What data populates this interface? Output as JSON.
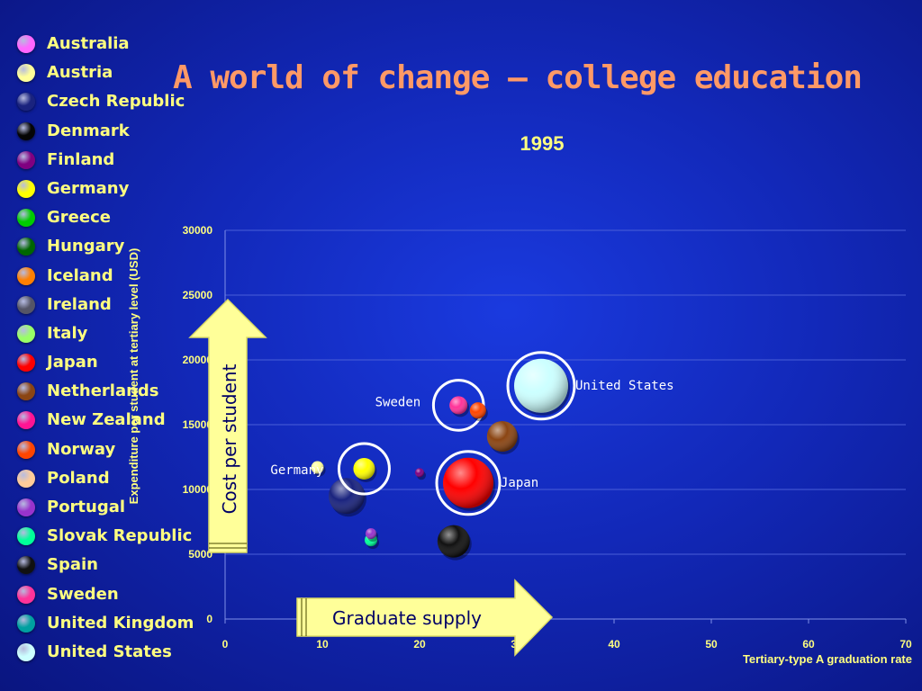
{
  "slide": {
    "title": "A world of change – college education",
    "cost_arrow_label": "Cost per student",
    "supply_arrow_label": "Graduate supply"
  },
  "legend": [
    {
      "label": "Australia",
      "color": "#ff66ff"
    },
    {
      "label": "Austria",
      "color": "#ffff99"
    },
    {
      "label": "Czech Republic",
      "color": "#1a237e"
    },
    {
      "label": "Denmark",
      "color": "#050505"
    },
    {
      "label": "Finland",
      "color": "#800080"
    },
    {
      "label": "Germany",
      "color": "#ffff00"
    },
    {
      "label": "Greece",
      "color": "#00cc00"
    },
    {
      "label": "Hungary",
      "color": "#006600"
    },
    {
      "label": "Iceland",
      "color": "#ff7f00"
    },
    {
      "label": "Ireland",
      "color": "#555566"
    },
    {
      "label": "Italy",
      "color": "#99ff66"
    },
    {
      "label": "Japan",
      "color": "#ff0000"
    },
    {
      "label": "Netherlands",
      "color": "#8b4513"
    },
    {
      "label": "New Zealand",
      "color": "#ff1493"
    },
    {
      "label": "Norway",
      "color": "#ff4500"
    },
    {
      "label": "Poland",
      "color": "#ffcc99"
    },
    {
      "label": "Portugal",
      "color": "#9933cc"
    },
    {
      "label": "Slovak Republic",
      "color": "#00ff99"
    },
    {
      "label": "Spain",
      "color": "#111111"
    },
    {
      "label": "Sweden",
      "color": "#ff3399"
    },
    {
      "label": "United Kingdom",
      "color": "#00a0a0"
    },
    {
      "label": "United States",
      "color": "#ccffff"
    }
  ],
  "chart_data": {
    "type": "scatter",
    "title": "1995",
    "xlabel": "Tertiary-type A graduation rate",
    "ylabel": "Expenditure per student at tertiary level (USD)",
    "xlim": [
      0,
      70
    ],
    "ylim": [
      0,
      30000
    ],
    "x_ticks": [
      0,
      10,
      20,
      30,
      40,
      50,
      60,
      70
    ],
    "y_ticks": [
      0,
      5000,
      10000,
      15000,
      20000,
      25000,
      30000
    ],
    "grid": "horizontal",
    "points": [
      {
        "country": "United States",
        "x": 32.5,
        "y": 18000,
        "r": 30,
        "color": "#ccffff",
        "highlight": true,
        "label": "United States"
      },
      {
        "country": "Japan",
        "x": 25,
        "y": 10500,
        "r": 28,
        "color": "#ff0000",
        "highlight": true,
        "label": "Japan"
      },
      {
        "country": "Sweden",
        "x": 24,
        "y": 16500,
        "r": 10,
        "color": "#ff3399",
        "highlight": true,
        "label": "Sweden"
      },
      {
        "country": "Norway",
        "x": 26,
        "y": 16100,
        "r": 9,
        "color": "#ff4500",
        "highlight": false,
        "label": ""
      },
      {
        "country": "Netherlands",
        "x": 28.5,
        "y": 14100,
        "r": 17,
        "color": "#8b4513",
        "highlight": false,
        "label": ""
      },
      {
        "country": "Germany",
        "x": 14.3,
        "y": 11600,
        "r": 12,
        "color": "#ffff00",
        "highlight": true,
        "label": "Germany"
      },
      {
        "country": "Austria",
        "x": 9.5,
        "y": 11700,
        "r": 7,
        "color": "#ffff99",
        "highlight": false,
        "label": ""
      },
      {
        "country": "Czech Republic",
        "x": 12.5,
        "y": 9500,
        "r": 20,
        "color": "#1a237e",
        "highlight": false,
        "label": ""
      },
      {
        "country": "Finland",
        "x": 20,
        "y": 11300,
        "r": 5,
        "color": "#800080",
        "highlight": false,
        "label": ""
      },
      {
        "country": "Spain",
        "x": 23.5,
        "y": 6000,
        "r": 18,
        "color": "#111111",
        "highlight": false,
        "label": ""
      },
      {
        "country": "Portugal",
        "x": 15,
        "y": 6600,
        "r": 6,
        "color": "#9933cc",
        "highlight": false,
        "label": ""
      },
      {
        "country": "Slovak Republic",
        "x": 15,
        "y": 6100,
        "r": 7,
        "color": "#00ff99",
        "highlight": false,
        "label": ""
      }
    ]
  }
}
